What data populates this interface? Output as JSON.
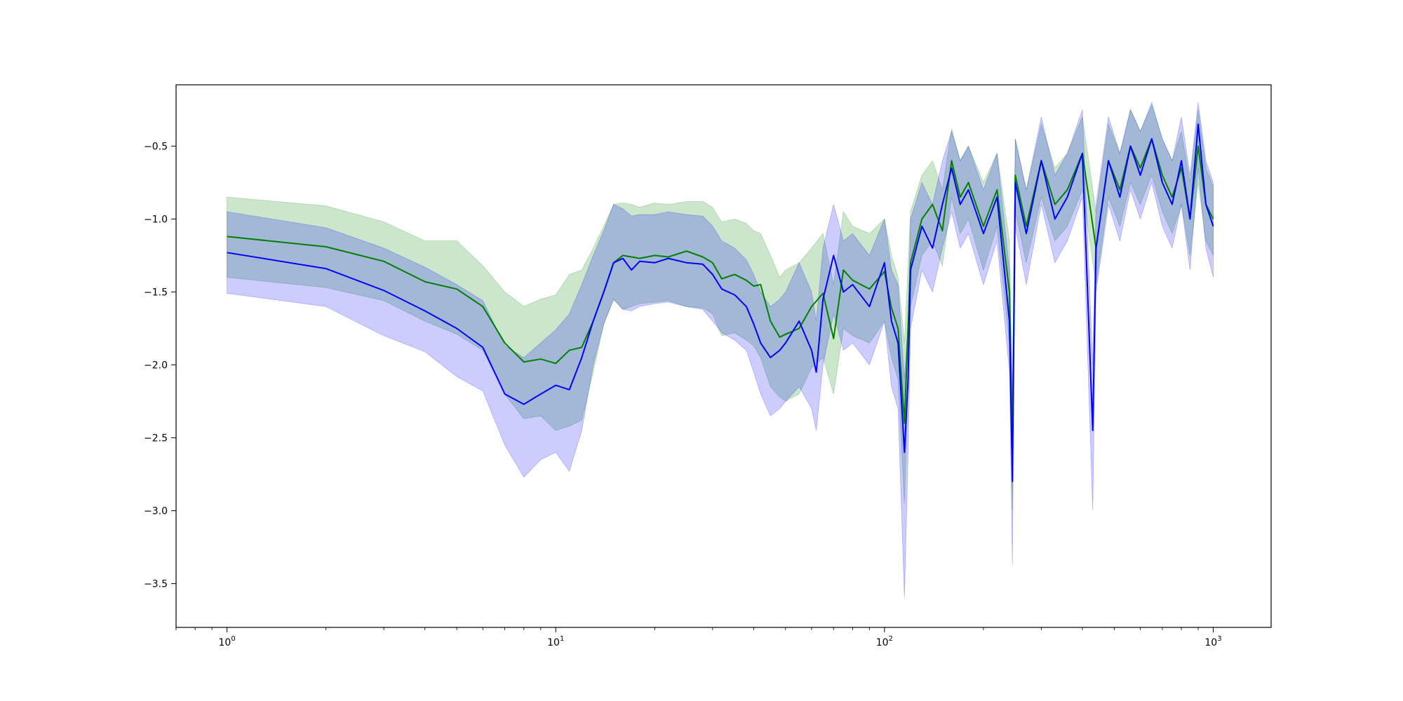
{
  "chart_data": {
    "type": "line",
    "title": "",
    "xlabel": "",
    "ylabel": "",
    "xscale": "log",
    "xlim": [
      0.7,
      1500
    ],
    "ylim": [
      -3.8,
      -0.08
    ],
    "x_ticks": [
      {
        "value": 1,
        "base": "10",
        "exp": "0"
      },
      {
        "value": 10,
        "base": "10",
        "exp": "1"
      },
      {
        "value": 100,
        "base": "10",
        "exp": "2"
      },
      {
        "value": 1000,
        "base": "10",
        "exp": "3"
      }
    ],
    "y_ticks": [
      {
        "value": -0.5,
        "label": "−0.5"
      },
      {
        "value": -1.0,
        "label": "−1.0"
      },
      {
        "value": -1.5,
        "label": "−1.5"
      },
      {
        "value": -2.0,
        "label": "−2.0"
      },
      {
        "value": -2.5,
        "label": "−2.5"
      },
      {
        "value": -3.0,
        "label": "−3.0"
      },
      {
        "value": -3.5,
        "label": "−3.5"
      }
    ],
    "grid": false,
    "legend": "none",
    "series": [
      {
        "color": "#008000",
        "band_color": "#008000",
        "x": [
          1,
          2,
          3,
          4,
          5,
          6,
          7,
          8,
          9,
          10,
          11,
          12,
          13,
          14,
          15,
          16,
          17,
          18,
          20,
          22,
          25,
          28,
          30,
          32,
          35,
          38,
          40,
          42,
          45,
          48,
          50,
          55,
          60,
          65,
          70,
          75,
          80,
          90,
          100,
          105,
          110,
          115,
          120,
          130,
          140,
          150,
          160,
          170,
          180,
          200,
          220,
          240,
          245,
          250,
          270,
          300,
          330,
          360,
          400,
          440,
          480,
          520,
          560,
          600,
          650,
          700,
          750,
          800,
          850,
          900,
          950,
          1000
        ],
        "y": [
          -1.12,
          -1.19,
          -1.29,
          -1.43,
          -1.48,
          -1.6,
          -1.85,
          -1.98,
          -1.96,
          -1.99,
          -1.9,
          -1.88,
          -1.7,
          -1.5,
          -1.3,
          -1.25,
          -1.26,
          -1.27,
          -1.25,
          -1.26,
          -1.22,
          -1.26,
          -1.3,
          -1.41,
          -1.38,
          -1.42,
          -1.46,
          -1.45,
          -1.7,
          -1.81,
          -1.79,
          -1.75,
          -1.6,
          -1.51,
          -1.82,
          -1.35,
          -1.42,
          -1.48,
          -1.36,
          -1.61,
          -1.75,
          -2.4,
          -1.3,
          -1.0,
          -0.9,
          -1.08,
          -0.6,
          -0.85,
          -0.75,
          -1.05,
          -0.8,
          -1.5,
          -2.6,
          -0.7,
          -1.05,
          -0.6,
          -0.9,
          -0.8,
          -0.55,
          -1.2,
          -0.6,
          -0.8,
          -0.5,
          -0.65,
          -0.45,
          -0.7,
          -0.85,
          -0.65,
          -1.0,
          -0.5,
          -0.9,
          -1.0
        ],
        "band_lower": [
          -1.4,
          -1.47,
          -1.56,
          -1.7,
          -1.79,
          -1.9,
          -2.2,
          -2.37,
          -2.35,
          -2.45,
          -2.42,
          -2.38,
          -2.05,
          -1.72,
          -1.55,
          -1.62,
          -1.6,
          -1.58,
          -1.57,
          -1.56,
          -1.6,
          -1.61,
          -1.65,
          -1.8,
          -1.78,
          -1.83,
          -1.87,
          -1.95,
          -2.15,
          -2.22,
          -2.25,
          -2.2,
          -2.02,
          -1.95,
          -2.2,
          -1.75,
          -1.8,
          -1.85,
          -1.7,
          -1.95,
          -2.1,
          -2.95,
          -1.6,
          -1.25,
          -1.15,
          -1.32,
          -0.85,
          -1.1,
          -1.0,
          -1.35,
          -1.05,
          -1.85,
          -3.0,
          -0.95,
          -1.3,
          -0.85,
          -1.15,
          -1.05,
          -0.8,
          -1.45,
          -0.85,
          -1.05,
          -0.75,
          -0.9,
          -0.7,
          -0.95,
          -1.1,
          -0.9,
          -1.25,
          -0.75,
          -1.15,
          -1.25
        ],
        "band_upper": [
          -0.85,
          -0.91,
          -1.02,
          -1.15,
          -1.15,
          -1.32,
          -1.5,
          -1.6,
          -1.55,
          -1.52,
          -1.38,
          -1.35,
          -1.2,
          -1.05,
          -0.9,
          -0.89,
          -0.9,
          -0.92,
          -0.89,
          -0.9,
          -0.88,
          -0.88,
          -0.92,
          -1.02,
          -1.0,
          -1.03,
          -1.08,
          -1.1,
          -1.25,
          -1.4,
          -1.35,
          -1.3,
          -1.2,
          -1.1,
          -1.45,
          -0.95,
          -1.05,
          -1.1,
          -1.0,
          -1.25,
          -1.4,
          -1.85,
          -0.95,
          -0.7,
          -0.6,
          -0.8,
          -0.38,
          -0.6,
          -0.5,
          -0.75,
          -0.55,
          -1.15,
          -2.2,
          -0.45,
          -0.8,
          -0.35,
          -0.65,
          -0.55,
          -0.3,
          -0.95,
          -0.35,
          -0.55,
          -0.25,
          -0.4,
          -0.22,
          -0.45,
          -0.6,
          -0.4,
          -0.75,
          -0.25,
          -0.65,
          -0.78
        ]
      },
      {
        "color": "#0000ff",
        "band_color": "#0000ff",
        "x": [
          1,
          2,
          3,
          4,
          5,
          6,
          7,
          8,
          9,
          10,
          11,
          12,
          13,
          14,
          15,
          16,
          17,
          18,
          20,
          22,
          25,
          28,
          30,
          32,
          35,
          38,
          40,
          42,
          45,
          48,
          50,
          55,
          60,
          62,
          65,
          70,
          75,
          80,
          90,
          100,
          105,
          110,
          115,
          118,
          120,
          130,
          140,
          150,
          160,
          170,
          180,
          200,
          220,
          240,
          245,
          250,
          270,
          300,
          330,
          360,
          400,
          430,
          440,
          480,
          520,
          560,
          600,
          650,
          700,
          750,
          800,
          850,
          900,
          950,
          1000
        ],
        "y": [
          -1.23,
          -1.34,
          -1.49,
          -1.63,
          -1.75,
          -1.88,
          -2.2,
          -2.27,
          -2.2,
          -2.14,
          -2.17,
          -1.95,
          -1.7,
          -1.5,
          -1.3,
          -1.27,
          -1.35,
          -1.29,
          -1.3,
          -1.27,
          -1.3,
          -1.31,
          -1.38,
          -1.48,
          -1.52,
          -1.6,
          -1.72,
          -1.85,
          -1.95,
          -1.9,
          -1.85,
          -1.7,
          -1.9,
          -2.05,
          -1.55,
          -1.25,
          -1.5,
          -1.45,
          -1.6,
          -1.3,
          -1.7,
          -1.85,
          -2.6,
          -2.1,
          -1.35,
          -1.05,
          -1.2,
          -0.9,
          -0.65,
          -0.9,
          -0.8,
          -1.1,
          -0.85,
          -1.7,
          -2.8,
          -0.75,
          -1.1,
          -0.6,
          -1.0,
          -0.85,
          -0.55,
          -2.45,
          -1.2,
          -0.6,
          -0.85,
          -0.5,
          -0.7,
          -0.45,
          -0.75,
          -0.9,
          -0.6,
          -1.0,
          -0.35,
          -0.9,
          -1.05
        ],
        "band_lower": [
          -1.51,
          -1.6,
          -1.8,
          -1.91,
          -2.08,
          -2.18,
          -2.55,
          -2.77,
          -2.65,
          -2.6,
          -2.73,
          -2.45,
          -2.0,
          -1.72,
          -1.55,
          -1.62,
          -1.63,
          -1.6,
          -1.58,
          -1.57,
          -1.6,
          -1.62,
          -1.7,
          -1.78,
          -1.83,
          -1.9,
          -2.05,
          -2.2,
          -2.35,
          -2.3,
          -2.25,
          -2.15,
          -2.3,
          -2.45,
          -2.0,
          -1.65,
          -1.9,
          -1.85,
          -2.0,
          -1.7,
          -2.15,
          -2.3,
          -3.6,
          -2.6,
          -1.75,
          -1.35,
          -1.5,
          -1.2,
          -0.95,
          -1.2,
          -1.1,
          -1.45,
          -1.15,
          -2.05,
          -3.37,
          -1.05,
          -1.45,
          -0.9,
          -1.3,
          -1.15,
          -0.85,
          -3.0,
          -1.5,
          -0.9,
          -1.15,
          -0.8,
          -1.0,
          -0.75,
          -1.05,
          -1.2,
          -0.9,
          -1.35,
          -0.65,
          -1.2,
          -1.4
        ],
        "band_upper": [
          -0.95,
          -1.06,
          -1.2,
          -1.33,
          -1.45,
          -1.56,
          -1.87,
          -1.95,
          -1.85,
          -1.76,
          -1.65,
          -1.45,
          -1.25,
          -1.08,
          -0.9,
          -0.93,
          -0.98,
          -0.97,
          -0.97,
          -0.95,
          -0.97,
          -0.98,
          -1.05,
          -1.15,
          -1.2,
          -1.28,
          -1.38,
          -1.5,
          -1.6,
          -1.55,
          -1.5,
          -1.3,
          -1.5,
          -1.7,
          -1.2,
          -0.9,
          -1.15,
          -1.1,
          -1.25,
          -1.0,
          -1.35,
          -1.45,
          -2.1,
          -1.7,
          -1.0,
          -0.75,
          -0.9,
          -0.6,
          -0.4,
          -0.6,
          -0.5,
          -0.8,
          -0.55,
          -1.35,
          -2.3,
          -0.45,
          -0.8,
          -0.3,
          -0.7,
          -0.55,
          -0.25,
          -2.0,
          -0.9,
          -0.3,
          -0.55,
          -0.25,
          -0.4,
          -0.2,
          -0.45,
          -0.6,
          -0.3,
          -0.7,
          -0.2,
          -0.6,
          -0.75
        ]
      }
    ]
  }
}
